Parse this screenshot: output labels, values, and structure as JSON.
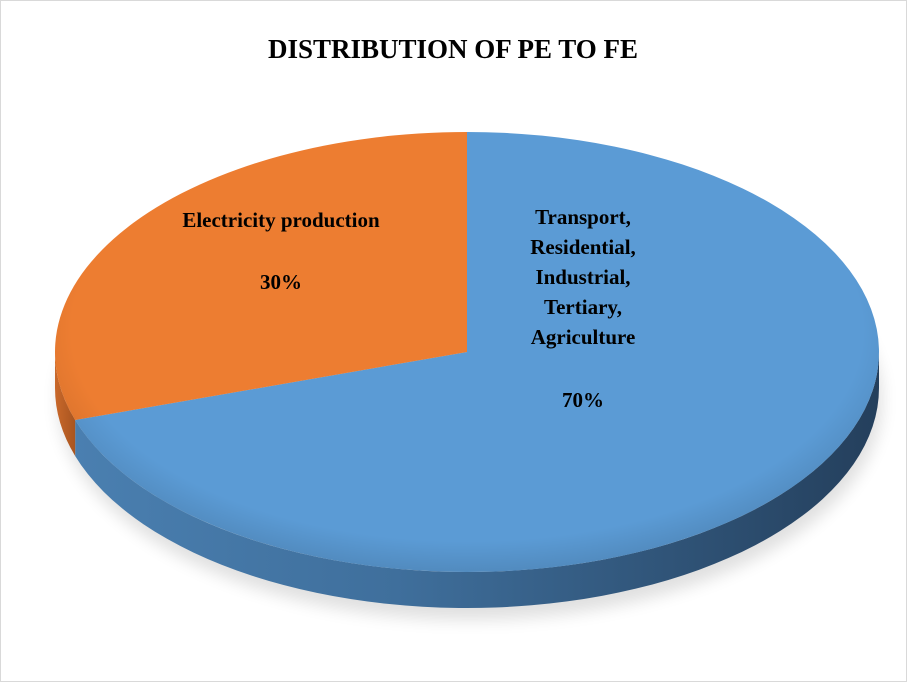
{
  "chart_data": {
    "type": "pie",
    "title": "DISTRIBUTION OF PE TO FE",
    "categories": [
      "Transport, Residential, Industrial, Tertiary, Agriculture",
      "Electricity production"
    ],
    "values": [
      70,
      30
    ],
    "value_labels": [
      "70%",
      "30%"
    ],
    "colors": [
      "#5b9bd5",
      "#ed7d31"
    ]
  }
}
